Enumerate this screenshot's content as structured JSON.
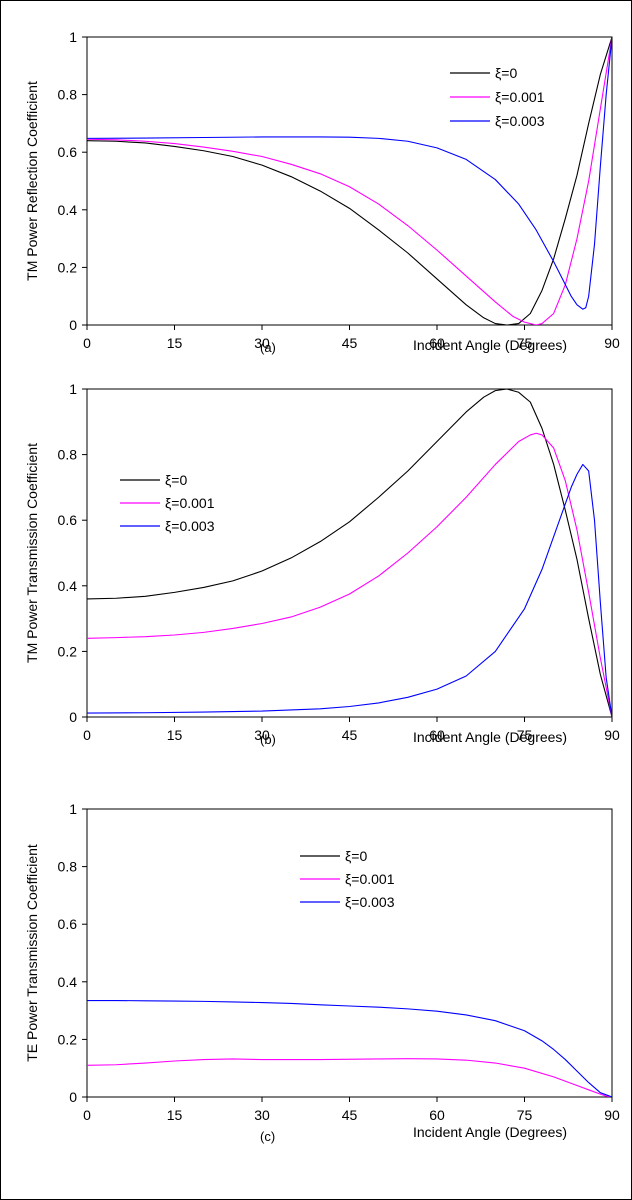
{
  "chart_data": [
    {
      "type": "line",
      "panel_label": "(a)",
      "xlabel": "Incident  Angle (Degrees)",
      "ylabel": "TM Power Reflection Coefficient",
      "xlim": [
        0,
        90
      ],
      "ylim": [
        0,
        1
      ],
      "x_ticks": [
        "0",
        "15",
        "30",
        "45",
        "60",
        "75",
        "90"
      ],
      "y_ticks": [
        "0",
        "0.2",
        "0.4",
        "0.6",
        "0.8",
        "1"
      ],
      "grid": false,
      "legend_position": "top-right",
      "series": [
        {
          "name": "ξ=0",
          "color": "#000000",
          "x": [
            0,
            5,
            10,
            15,
            20,
            25,
            30,
            35,
            40,
            45,
            50,
            55,
            60,
            65,
            68,
            70,
            72,
            74,
            76,
            78,
            80,
            82,
            84,
            86,
            88,
            90
          ],
          "y": [
            0.64,
            0.638,
            0.632,
            0.62,
            0.605,
            0.585,
            0.555,
            0.515,
            0.465,
            0.405,
            0.33,
            0.25,
            0.16,
            0.07,
            0.025,
            0.005,
            0.0,
            0.005,
            0.04,
            0.12,
            0.23,
            0.37,
            0.52,
            0.7,
            0.87,
            1.0
          ]
        },
        {
          "name": "ξ=0.001",
          "color": "#ff00ff",
          "x": [
            0,
            5,
            10,
            15,
            20,
            25,
            30,
            35,
            40,
            45,
            50,
            55,
            60,
            65,
            70,
            73,
            75,
            77,
            78,
            80,
            82,
            84,
            86,
            88,
            90
          ],
          "y": [
            0.645,
            0.643,
            0.638,
            0.63,
            0.618,
            0.603,
            0.585,
            0.558,
            0.525,
            0.48,
            0.42,
            0.345,
            0.26,
            0.17,
            0.08,
            0.03,
            0.01,
            0.0,
            0.005,
            0.04,
            0.14,
            0.3,
            0.5,
            0.75,
            1.0
          ]
        },
        {
          "name": "ξ=0.003",
          "color": "#0000ff",
          "x": [
            0,
            10,
            20,
            30,
            40,
            45,
            50,
            55,
            60,
            65,
            70,
            74,
            77,
            80,
            82,
            83,
            84,
            85,
            85.5,
            86,
            87,
            88,
            89,
            90
          ],
          "y": [
            0.648,
            0.649,
            0.651,
            0.653,
            0.653,
            0.652,
            0.648,
            0.638,
            0.615,
            0.575,
            0.505,
            0.42,
            0.33,
            0.22,
            0.14,
            0.1,
            0.07,
            0.055,
            0.06,
            0.1,
            0.28,
            0.55,
            0.8,
            1.0
          ]
        }
      ]
    },
    {
      "type": "line",
      "panel_label": "(b)",
      "xlabel": "Incident  Angle (Degrees)",
      "ylabel": "TM Power Transmission Coefficient",
      "xlim": [
        0,
        90
      ],
      "ylim": [
        0,
        1
      ],
      "x_ticks": [
        "0",
        "15",
        "30",
        "45",
        "60",
        "75",
        "90"
      ],
      "y_ticks": [
        "0",
        "0.2",
        "0.4",
        "0.6",
        "0.8",
        "1"
      ],
      "grid": false,
      "legend_position": "top-left",
      "series": [
        {
          "name": "ξ=0",
          "color": "#000000",
          "x": [
            0,
            5,
            10,
            15,
            20,
            25,
            30,
            35,
            40,
            45,
            50,
            55,
            60,
            65,
            68,
            70,
            72,
            74,
            76,
            78,
            80,
            82,
            84,
            86,
            88,
            90
          ],
          "y": [
            0.36,
            0.362,
            0.368,
            0.38,
            0.395,
            0.415,
            0.445,
            0.485,
            0.535,
            0.595,
            0.67,
            0.75,
            0.84,
            0.93,
            0.975,
            0.995,
            1.0,
            0.99,
            0.96,
            0.88,
            0.77,
            0.63,
            0.48,
            0.3,
            0.13,
            0.0
          ]
        },
        {
          "name": "ξ=0.001",
          "color": "#ff00ff",
          "x": [
            0,
            5,
            10,
            15,
            20,
            25,
            30,
            35,
            40,
            45,
            50,
            55,
            60,
            65,
            70,
            74,
            76,
            77,
            78,
            80,
            82,
            84,
            86,
            88,
            90
          ],
          "y": [
            0.24,
            0.242,
            0.245,
            0.25,
            0.258,
            0.27,
            0.285,
            0.305,
            0.335,
            0.375,
            0.43,
            0.5,
            0.58,
            0.67,
            0.77,
            0.84,
            0.86,
            0.865,
            0.86,
            0.82,
            0.72,
            0.57,
            0.38,
            0.18,
            0.0
          ]
        },
        {
          "name": "ξ=0.003",
          "color": "#0000ff",
          "x": [
            0,
            10,
            20,
            30,
            40,
            45,
            50,
            55,
            60,
            65,
            70,
            75,
            78,
            80,
            82,
            83,
            84,
            85,
            86,
            87,
            88,
            89,
            90
          ],
          "y": [
            0.012,
            0.013,
            0.015,
            0.018,
            0.025,
            0.032,
            0.043,
            0.06,
            0.085,
            0.125,
            0.2,
            0.33,
            0.45,
            0.55,
            0.65,
            0.7,
            0.74,
            0.77,
            0.75,
            0.6,
            0.35,
            0.12,
            0.0
          ]
        }
      ]
    },
    {
      "type": "line",
      "panel_label": "(c)",
      "xlabel": "Incident  Angle (Degrees)",
      "ylabel": "TE Power Transmission Coefficient",
      "xlim": [
        0,
        90
      ],
      "ylim": [
        0,
        1
      ],
      "x_ticks": [
        "0",
        "15",
        "30",
        "45",
        "60",
        "75",
        "90"
      ],
      "y_ticks": [
        "0",
        "0.2",
        "0.4",
        "0.6",
        "0.8",
        "1"
      ],
      "grid": false,
      "legend_position": "top-center",
      "series": [
        {
          "name": "ξ=0",
          "color": "#000000",
          "x": [
            0,
            90
          ],
          "y": [
            0.0,
            0.0
          ]
        },
        {
          "name": "ξ=0.001",
          "color": "#ff00ff",
          "x": [
            0,
            5,
            10,
            15,
            20,
            25,
            30,
            40,
            50,
            55,
            60,
            65,
            70,
            75,
            80,
            84,
            86,
            88,
            89,
            90
          ],
          "y": [
            0.11,
            0.112,
            0.118,
            0.125,
            0.13,
            0.132,
            0.13,
            0.13,
            0.132,
            0.133,
            0.132,
            0.128,
            0.118,
            0.1,
            0.07,
            0.04,
            0.025,
            0.01,
            0.003,
            0.0
          ]
        },
        {
          "name": "ξ=0.003",
          "color": "#0000ff",
          "x": [
            0,
            5,
            10,
            15,
            20,
            25,
            30,
            35,
            40,
            45,
            50,
            55,
            60,
            65,
            70,
            75,
            78,
            80,
            82,
            84,
            86,
            88,
            90
          ],
          "y": [
            0.335,
            0.335,
            0.334,
            0.333,
            0.332,
            0.33,
            0.328,
            0.325,
            0.32,
            0.316,
            0.312,
            0.306,
            0.298,
            0.285,
            0.265,
            0.23,
            0.195,
            0.165,
            0.13,
            0.09,
            0.05,
            0.015,
            0.0
          ]
        }
      ]
    }
  ]
}
